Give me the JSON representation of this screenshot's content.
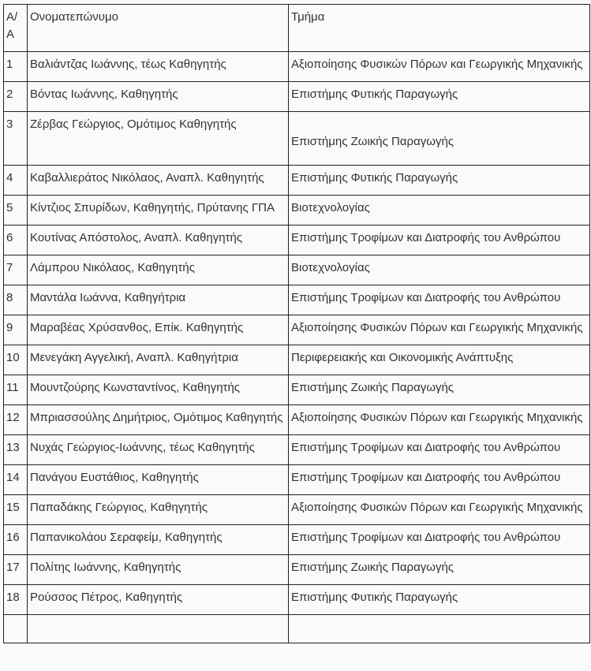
{
  "table": {
    "headers": [
      "Α/Α",
      "Ονοματεπώνυμο",
      "Τμήμα"
    ],
    "rows": [
      {
        "num": "1",
        "name": "Βαλιάντζας Ιωάννης, τέως Καθηγητής",
        "dept": "Αξιοποίησης Φυσικών Πόρων και Γεωργικής Μηχανικής"
      },
      {
        "num": "2",
        "name": "Βόντας Ιωάννης, Καθηγητής",
        "dept": "Επιστήμης Φυτικής Παραγωγής"
      },
      {
        "num": "3",
        "name": "Ζέρβας Γεώργιος, Ομότιμος Καθηγητής",
        "dept": "Επιστήμης Ζωικής Παραγωγής"
      },
      {
        "num": "4",
        "name": "Καβαλλιεράτος Νικόλαος, Αναπλ. Καθηγητής",
        "dept": "Επιστήμης Φυτικής Παραγωγής"
      },
      {
        "num": "5",
        "name": "Κίντζιος Σπυρίδων, Καθηγητής, Πρύτανης ΓΠΑ",
        "dept": "Βιοτεχνολογίας"
      },
      {
        "num": "6",
        "name": "Κουτίνας Απόστολος, Αναπλ. Καθηγητής",
        "dept": "Επιστήμης Τροφίμων και Διατροφής του Ανθρώπου"
      },
      {
        "num": "7",
        "name": "Λάμπρου Νικόλαος, Καθηγητής",
        "dept": "Βιοτεχνολογίας"
      },
      {
        "num": "8",
        "name": "Μαντάλα Ιωάννα, Καθηγήτρια",
        "dept": "Επιστήμης Τροφίμων και Διατροφής του Ανθρώπου"
      },
      {
        "num": "9",
        "name": "Μαραβέας Χρύσανθος, Επίκ. Καθηγητής",
        "dept": "Αξιοποίησης Φυσικών Πόρων και Γεωργικής Μηχανικής"
      },
      {
        "num": "10",
        "name": "Μενεγάκη Αγγελική, Αναπλ. Καθηγήτρια",
        "dept": "Περιφερειακής και Οικονομικής Ανάπτυξης"
      },
      {
        "num": "11",
        "name": "Μουντζούρης Κωνσταντίνος, Καθηγητής",
        "dept": "Επιστήμης Ζωικής Παραγωγής"
      },
      {
        "num": "12",
        "name": "Μπριασσούλης Δημήτριος, Ομότιμος Καθηγητής",
        "dept": "Αξιοποίησης Φυσικών Πόρων και Γεωργικής Μηχανικής"
      },
      {
        "num": "13",
        "name": "Νυχάς Γεώργιος-Ιωάννης, τέως Καθηγητής",
        "dept": "Επιστήμης Τροφίμων και Διατροφής του Ανθρώπου"
      },
      {
        "num": "14",
        "name": "Πανάγου Ευστάθιος, Καθηγητής",
        "dept": "Επιστήμης Τροφίμων και Διατροφής του Ανθρώπου"
      },
      {
        "num": "15",
        "name": "Παπαδάκης Γεώργιος, Καθηγητής",
        "dept": "Αξιοποίησης Φυσικών Πόρων και Γεωργικής Μηχανικής"
      },
      {
        "num": "16",
        "name": "Παπανικολάου Σεραφείμ, Καθηγητής",
        "dept": "Επιστήμης Τροφίμων και Διατροφής του Ανθρώπου"
      },
      {
        "num": "17",
        "name": "Πολίτης Ιωάννης, Καθηγητής",
        "dept": "Επιστήμης Ζωικής Παραγωγής"
      },
      {
        "num": "18",
        "name": "Ρούσσος Πέτρος, Καθηγητής",
        "dept": "Επιστήμης Φυτικής Παραγωγής"
      }
    ]
  }
}
